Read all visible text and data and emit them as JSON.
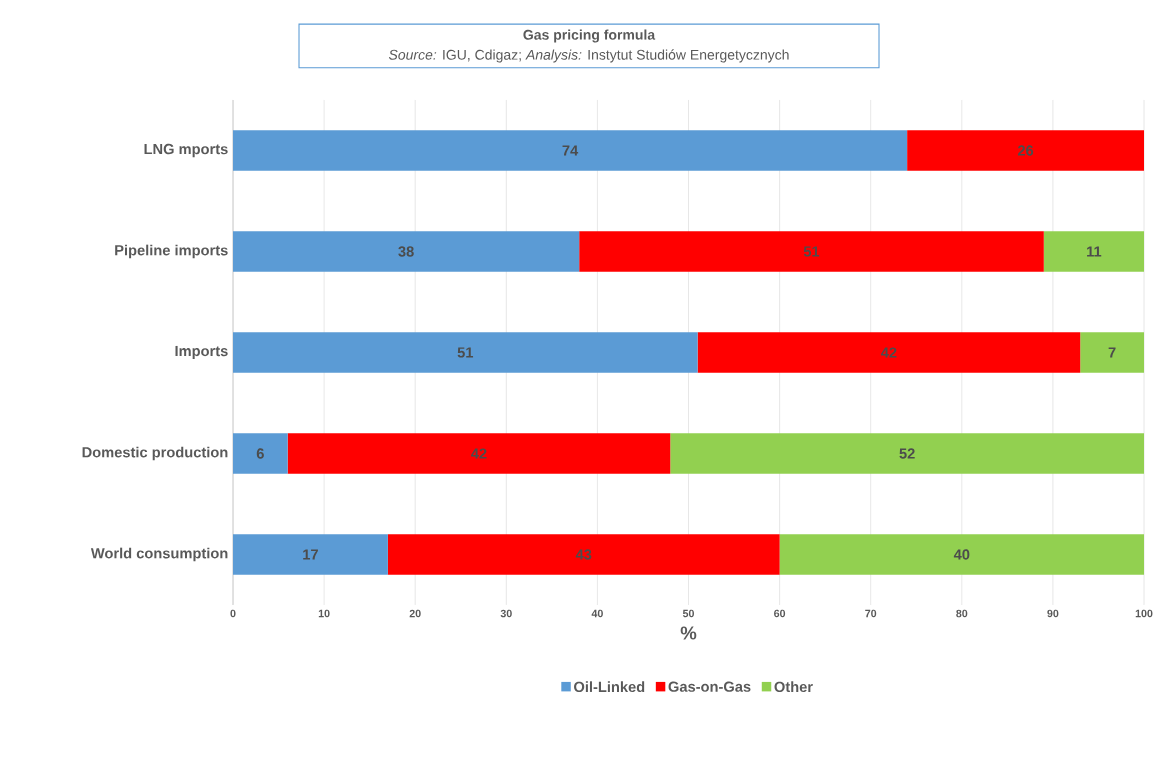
{
  "chart_data": {
    "type": "bar",
    "orientation": "horizontal",
    "stacked": true,
    "title": "Gas pricing formula",
    "subtitle": "*Source:* IGU, Cdigaz; *Analysis:* Instytut Studiów Energetycznych",
    "xlabel": "%",
    "categories": [
      "LNG mports",
      "Pipeline imports",
      "Imports",
      "Domestic production",
      "World consumption"
    ],
    "series": [
      {
        "name": "Oil-Linked",
        "color": "#5b9bd5",
        "values": [
          74,
          38,
          51,
          6,
          17
        ]
      },
      {
        "name": "Gas-on-Gas",
        "color": "#ff0000",
        "values": [
          26,
          51,
          42,
          42,
          43
        ]
      },
      {
        "name": "Other",
        "color": "#92d050",
        "values": [
          null,
          11,
          7,
          52,
          40
        ]
      }
    ],
    "xlim": [
      0,
      100
    ],
    "xticks": [
      0,
      10,
      20,
      30,
      40,
      50,
      60,
      70,
      80,
      90,
      100
    ],
    "grid": "x",
    "legend": "bottom",
    "data_labels": true
  }
}
